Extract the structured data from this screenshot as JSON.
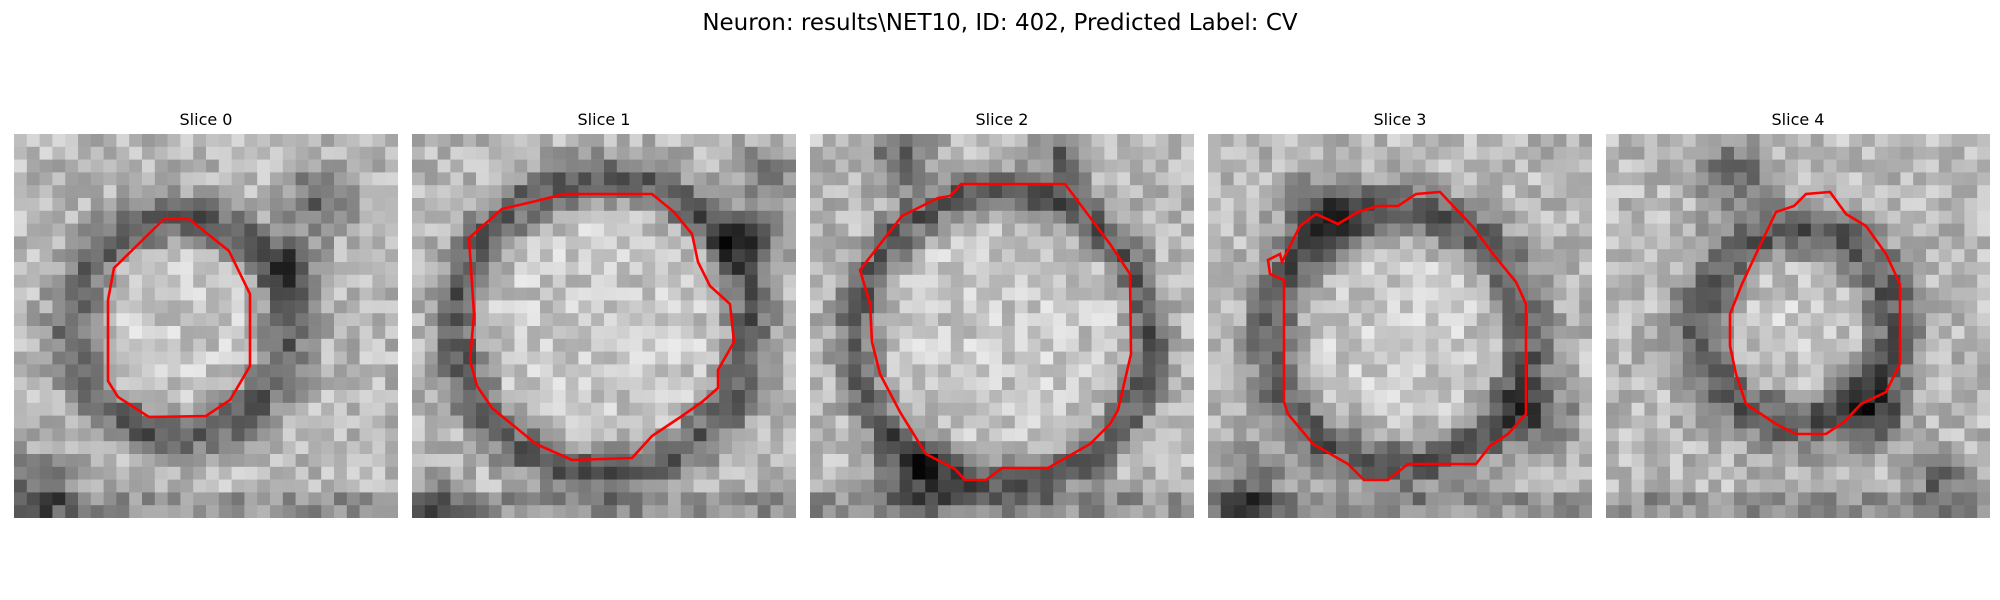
{
  "figure": {
    "title": "Neuron: results\\NET10, ID: 402, Predicted Label: CV"
  },
  "panels": [
    {
      "title": "Slice 0",
      "contour_color": "#ff0000"
    },
    {
      "title": "Slice 1",
      "contour_color": "#ff0000"
    },
    {
      "title": "Slice 2",
      "contour_color": "#ff0000"
    },
    {
      "title": "Slice 3",
      "contour_color": "#ff0000"
    },
    {
      "title": "Slice 4",
      "contour_color": "#ff0000"
    }
  ]
}
